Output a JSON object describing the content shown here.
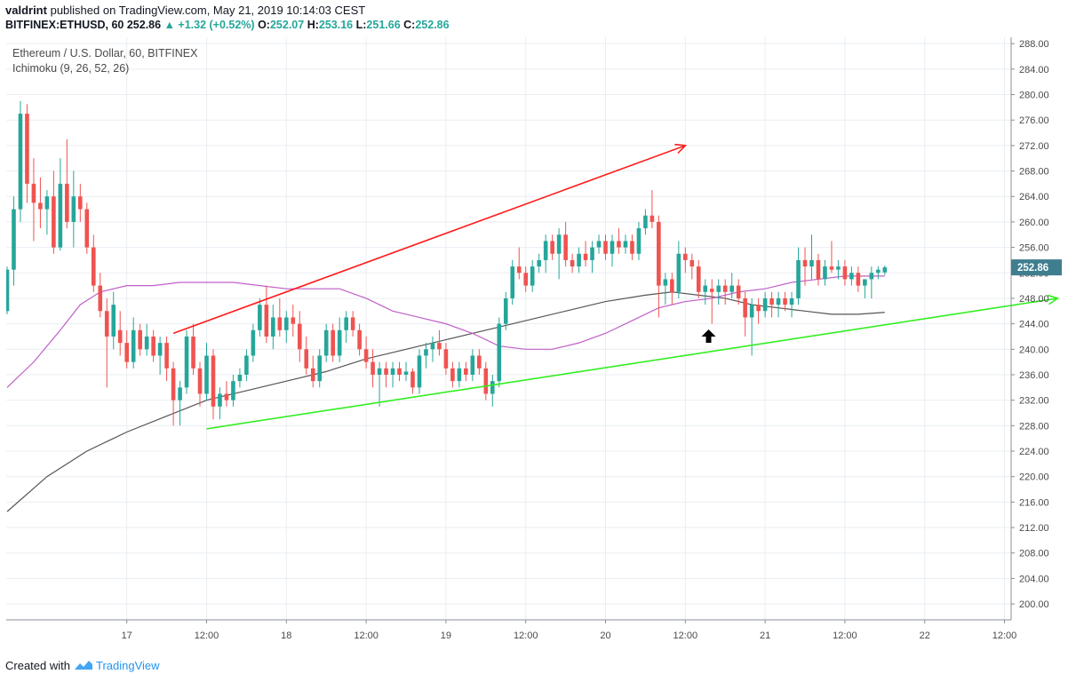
{
  "header": {
    "author": "valdrint",
    "published_text": "published on TradingView.com, May 21, 2019 10:14:03 CEST",
    "symbol_line": "BITFINEX:ETHUSD, 60",
    "last_price": "252.86",
    "change_arrow": "▲",
    "change": "+1.32 (+0.52%)",
    "o_label": "O:",
    "o_value": "252.07",
    "h_label": "H:",
    "h_value": "253.16",
    "l_label": "L:",
    "l_value": "251.66",
    "c_label": "C:",
    "c_value": "252.86"
  },
  "legend": {
    "title": "Ethereum / U.S. Dollar, 60, BITFINEX",
    "indicator": "Ichimoku (9, 26, 52, 26)"
  },
  "footer": {
    "created_with": "Created with",
    "brand": "TradingView"
  },
  "colors": {
    "up": "#26a69a",
    "down": "#ef5350",
    "grid": "#e9eef2",
    "kijun": "#c05fc7",
    "ma": "#555555",
    "resistance": "#ff1a1a",
    "support": "#33ee22",
    "price_tag": "#3f7e8f"
  },
  "chart_data": {
    "type": "candlestick",
    "title": "Ethereum / U.S. Dollar, 60, BITFINEX",
    "ylim": [
      197.5,
      289
    ],
    "y_ticks": [
      288,
      284,
      280,
      276,
      272,
      268,
      264,
      260,
      256,
      252,
      248,
      244,
      240,
      236,
      232,
      228,
      224,
      220,
      216,
      212,
      208,
      204,
      200
    ],
    "y_tick_labels": [
      "288.00",
      "284.00",
      "280.00",
      "276.00",
      "272.00",
      "268.00",
      "264.00",
      "260.00",
      "256.00",
      "252.00",
      "248.00",
      "244.00",
      "240.00",
      "236.00",
      "232.00",
      "228.00",
      "224.00",
      "220.00",
      "216.00",
      "212.00",
      "208.00",
      "204.00",
      "200.00"
    ],
    "x_ticks": [
      {
        "t": 18,
        "label": "17"
      },
      {
        "t": 30,
        "label": "12:00"
      },
      {
        "t": 42,
        "label": "18"
      },
      {
        "t": 54,
        "label": "12:00"
      },
      {
        "t": 66,
        "label": "19"
      },
      {
        "t": 78,
        "label": "12:00"
      },
      {
        "t": 90,
        "label": "20"
      },
      {
        "t": 102,
        "label": "12:00"
      },
      {
        "t": 114,
        "label": "21"
      },
      {
        "t": 126,
        "label": "12:00"
      },
      {
        "t": 138,
        "label": "22"
      },
      {
        "t": 150,
        "label": "12:00"
      }
    ],
    "t_range": [
      0,
      151
    ],
    "last_price_label": "252.86",
    "last_price_value": 252.86,
    "candles": [
      {
        "t": 0,
        "o": 246,
        "h": 253,
        "l": 245.5,
        "c": 252.5
      },
      {
        "t": 1,
        "o": 252.5,
        "h": 264,
        "l": 250,
        "c": 262
      },
      {
        "t": 2,
        "o": 262,
        "h": 279,
        "l": 260,
        "c": 277
      },
      {
        "t": 3,
        "o": 277,
        "h": 278.5,
        "l": 263,
        "c": 266
      },
      {
        "t": 4,
        "o": 266,
        "h": 270,
        "l": 257,
        "c": 263
      },
      {
        "t": 5,
        "o": 263,
        "h": 267,
        "l": 259,
        "c": 262
      },
      {
        "t": 6,
        "o": 262,
        "h": 265,
        "l": 258,
        "c": 264
      },
      {
        "t": 7,
        "o": 264,
        "h": 268,
        "l": 255,
        "c": 256
      },
      {
        "t": 8,
        "o": 256,
        "h": 270,
        "l": 255.5,
        "c": 266
      },
      {
        "t": 9,
        "o": 266,
        "h": 273,
        "l": 259,
        "c": 260
      },
      {
        "t": 10,
        "o": 260,
        "h": 268,
        "l": 256,
        "c": 264
      },
      {
        "t": 11,
        "o": 264,
        "h": 266,
        "l": 260,
        "c": 262
      },
      {
        "t": 12,
        "o": 262,
        "h": 263,
        "l": 255,
        "c": 256
      },
      {
        "t": 13,
        "o": 256,
        "h": 258,
        "l": 249,
        "c": 250
      },
      {
        "t": 14,
        "o": 250,
        "h": 252,
        "l": 245,
        "c": 246
      },
      {
        "t": 15,
        "o": 246,
        "h": 248,
        "l": 234,
        "c": 242
      },
      {
        "t": 16,
        "o": 242,
        "h": 249,
        "l": 240,
        "c": 247
      },
      {
        "t": 17,
        "o": 243,
        "h": 246,
        "l": 239,
        "c": 241
      },
      {
        "t": 18,
        "o": 241,
        "h": 243,
        "l": 237,
        "c": 238
      },
      {
        "t": 19,
        "o": 238,
        "h": 245,
        "l": 237,
        "c": 243
      },
      {
        "t": 20,
        "o": 243,
        "h": 244,
        "l": 239,
        "c": 240
      },
      {
        "t": 21,
        "o": 240,
        "h": 244,
        "l": 239,
        "c": 242
      },
      {
        "t": 22,
        "o": 242,
        "h": 243,
        "l": 238,
        "c": 239
      },
      {
        "t": 23,
        "o": 239,
        "h": 242,
        "l": 236,
        "c": 241
      },
      {
        "t": 24,
        "o": 241,
        "h": 242,
        "l": 235,
        "c": 237
      },
      {
        "t": 25,
        "o": 237,
        "h": 238,
        "l": 228,
        "c": 232
      },
      {
        "t": 26,
        "o": 232,
        "h": 235,
        "l": 228,
        "c": 234
      },
      {
        "t": 27,
        "o": 234,
        "h": 243,
        "l": 233,
        "c": 242
      },
      {
        "t": 28,
        "o": 242,
        "h": 244,
        "l": 236,
        "c": 237
      },
      {
        "t": 29,
        "o": 237,
        "h": 238,
        "l": 231,
        "c": 233
      },
      {
        "t": 30,
        "o": 233,
        "h": 241,
        "l": 232,
        "c": 239
      },
      {
        "t": 31,
        "o": 239,
        "h": 240,
        "l": 229,
        "c": 231
      },
      {
        "t": 32,
        "o": 231,
        "h": 234,
        "l": 229,
        "c": 233
      },
      {
        "t": 33,
        "o": 233,
        "h": 235,
        "l": 231,
        "c": 232
      },
      {
        "t": 34,
        "o": 232,
        "h": 236,
        "l": 231,
        "c": 235
      },
      {
        "t": 35,
        "o": 235,
        "h": 237,
        "l": 234,
        "c": 236
      },
      {
        "t": 36,
        "o": 236,
        "h": 240,
        "l": 235,
        "c": 239
      },
      {
        "t": 37,
        "o": 239,
        "h": 244,
        "l": 238,
        "c": 243
      },
      {
        "t": 38,
        "o": 243,
        "h": 248,
        "l": 242,
        "c": 247
      },
      {
        "t": 39,
        "o": 247,
        "h": 250,
        "l": 241,
        "c": 242
      },
      {
        "t": 40,
        "o": 242,
        "h": 247,
        "l": 240,
        "c": 245
      },
      {
        "t": 41,
        "o": 245,
        "h": 248,
        "l": 242,
        "c": 243
      },
      {
        "t": 42,
        "o": 243,
        "h": 246,
        "l": 241,
        "c": 245
      },
      {
        "t": 43,
        "o": 245,
        "h": 247,
        "l": 242,
        "c": 244
      },
      {
        "t": 44,
        "o": 244,
        "h": 246,
        "l": 238,
        "c": 240
      },
      {
        "t": 45,
        "o": 240,
        "h": 242,
        "l": 236,
        "c": 237
      },
      {
        "t": 46,
        "o": 237,
        "h": 239,
        "l": 234,
        "c": 235
      },
      {
        "t": 47,
        "o": 235,
        "h": 240,
        "l": 234,
        "c": 239
      },
      {
        "t": 48,
        "o": 239,
        "h": 244,
        "l": 238,
        "c": 243
      },
      {
        "t": 49,
        "o": 243,
        "h": 244,
        "l": 238,
        "c": 239
      },
      {
        "t": 50,
        "o": 239,
        "h": 245,
        "l": 238,
        "c": 243
      },
      {
        "t": 51,
        "o": 243,
        "h": 246,
        "l": 241,
        "c": 245
      },
      {
        "t": 52,
        "o": 245,
        "h": 246,
        "l": 242,
        "c": 243
      },
      {
        "t": 53,
        "o": 243,
        "h": 244,
        "l": 239,
        "c": 240
      },
      {
        "t": 54,
        "o": 240,
        "h": 242,
        "l": 237,
        "c": 238
      },
      {
        "t": 55,
        "o": 238,
        "h": 240,
        "l": 234,
        "c": 236
      },
      {
        "t": 56,
        "o": 236,
        "h": 238,
        "l": 231,
        "c": 237
      },
      {
        "t": 57,
        "o": 237,
        "h": 238,
        "l": 234,
        "c": 236
      },
      {
        "t": 58,
        "o": 236,
        "h": 238,
        "l": 234,
        "c": 237
      },
      {
        "t": 59,
        "o": 237,
        "h": 238,
        "l": 235,
        "c": 236
      },
      {
        "t": 60,
        "o": 236,
        "h": 238,
        "l": 235,
        "c": 236.5
      },
      {
        "t": 61,
        "o": 236.5,
        "h": 237,
        "l": 233,
        "c": 234
      },
      {
        "t": 62,
        "o": 234,
        "h": 240,
        "l": 233,
        "c": 239
      },
      {
        "t": 63,
        "o": 239,
        "h": 241,
        "l": 237,
        "c": 240
      },
      {
        "t": 64,
        "o": 240,
        "h": 242,
        "l": 238,
        "c": 241
      },
      {
        "t": 65,
        "o": 241,
        "h": 243,
        "l": 239,
        "c": 240
      },
      {
        "t": 66,
        "o": 240,
        "h": 241,
        "l": 236,
        "c": 237
      },
      {
        "t": 67,
        "o": 237,
        "h": 238,
        "l": 234,
        "c": 235
      },
      {
        "t": 68,
        "o": 235,
        "h": 238,
        "l": 234,
        "c": 237
      },
      {
        "t": 69,
        "o": 237,
        "h": 238,
        "l": 235,
        "c": 236
      },
      {
        "t": 70,
        "o": 236,
        "h": 240,
        "l": 235,
        "c": 239
      },
      {
        "t": 71,
        "o": 239,
        "h": 240,
        "l": 236,
        "c": 237
      },
      {
        "t": 72,
        "o": 237,
        "h": 238,
        "l": 232,
        "c": 233
      },
      {
        "t": 73,
        "o": 233,
        "h": 236,
        "l": 231,
        "c": 235
      },
      {
        "t": 74,
        "o": 235,
        "h": 245,
        "l": 234,
        "c": 244
      },
      {
        "t": 75,
        "o": 244,
        "h": 249,
        "l": 243,
        "c": 248
      },
      {
        "t": 76,
        "o": 248,
        "h": 254,
        "l": 247,
        "c": 253
      },
      {
        "t": 77,
        "o": 253,
        "h": 256,
        "l": 251,
        "c": 252
      },
      {
        "t": 78,
        "o": 252,
        "h": 253,
        "l": 249,
        "c": 250
      },
      {
        "t": 79,
        "o": 250,
        "h": 254,
        "l": 249,
        "c": 253
      },
      {
        "t": 80,
        "o": 253,
        "h": 255,
        "l": 252,
        "c": 254
      },
      {
        "t": 81,
        "o": 254,
        "h": 258,
        "l": 252,
        "c": 257
      },
      {
        "t": 82,
        "o": 257,
        "h": 258,
        "l": 254,
        "c": 255
      },
      {
        "t": 83,
        "o": 255,
        "h": 259,
        "l": 251,
        "c": 258
      },
      {
        "t": 84,
        "o": 258,
        "h": 260,
        "l": 253,
        "c": 254
      },
      {
        "t": 85,
        "o": 254,
        "h": 255,
        "l": 252,
        "c": 253
      },
      {
        "t": 86,
        "o": 253,
        "h": 256,
        "l": 252,
        "c": 255
      },
      {
        "t": 87,
        "o": 255,
        "h": 257,
        "l": 253,
        "c": 254
      },
      {
        "t": 88,
        "o": 254,
        "h": 257,
        "l": 252,
        "c": 256
      },
      {
        "t": 89,
        "o": 256,
        "h": 258,
        "l": 255,
        "c": 257
      },
      {
        "t": 90,
        "o": 257,
        "h": 258,
        "l": 254,
        "c": 255
      },
      {
        "t": 91,
        "o": 255,
        "h": 258,
        "l": 253,
        "c": 257
      },
      {
        "t": 92,
        "o": 257,
        "h": 259,
        "l": 255,
        "c": 256
      },
      {
        "t": 93,
        "o": 256,
        "h": 258,
        "l": 255,
        "c": 257
      },
      {
        "t": 94,
        "o": 257,
        "h": 258,
        "l": 254,
        "c": 255
      },
      {
        "t": 95,
        "o": 255,
        "h": 260,
        "l": 254,
        "c": 259
      },
      {
        "t": 96,
        "o": 259,
        "h": 262,
        "l": 258,
        "c": 261
      },
      {
        "t": 97,
        "o": 261,
        "h": 265,
        "l": 259,
        "c": 260
      },
      {
        "t": 98,
        "o": 260,
        "h": 261,
        "l": 245,
        "c": 250
      },
      {
        "t": 99,
        "o": 250,
        "h": 252,
        "l": 247,
        "c": 251
      },
      {
        "t": 100,
        "o": 251,
        "h": 252,
        "l": 247,
        "c": 249
      },
      {
        "t": 101,
        "o": 249,
        "h": 257,
        "l": 248,
        "c": 255
      },
      {
        "t": 102,
        "o": 255,
        "h": 256,
        "l": 252,
        "c": 254
      },
      {
        "t": 103,
        "o": 254,
        "h": 255,
        "l": 251,
        "c": 253
      },
      {
        "t": 104,
        "o": 253,
        "h": 254,
        "l": 248,
        "c": 249
      },
      {
        "t": 105,
        "o": 249,
        "h": 251,
        "l": 247,
        "c": 250
      },
      {
        "t": 106,
        "o": 249.5,
        "h": 251,
        "l": 244,
        "c": 249
      },
      {
        "t": 107,
        "o": 249,
        "h": 251,
        "l": 247,
        "c": 250
      },
      {
        "t": 108,
        "o": 250,
        "h": 251,
        "l": 247,
        "c": 249
      },
      {
        "t": 109,
        "o": 249,
        "h": 252,
        "l": 248,
        "c": 250
      },
      {
        "t": 110,
        "o": 250,
        "h": 251,
        "l": 247,
        "c": 248
      },
      {
        "t": 111,
        "o": 248,
        "h": 249,
        "l": 242,
        "c": 245
      },
      {
        "t": 112,
        "o": 245,
        "h": 248,
        "l": 239,
        "c": 247
      },
      {
        "t": 113,
        "o": 247,
        "h": 248,
        "l": 244,
        "c": 246
      },
      {
        "t": 114,
        "o": 246,
        "h": 249,
        "l": 245,
        "c": 248
      },
      {
        "t": 115,
        "o": 248,
        "h": 249,
        "l": 245,
        "c": 247
      },
      {
        "t": 116,
        "o": 247,
        "h": 249,
        "l": 245,
        "c": 248
      },
      {
        "t": 117,
        "o": 248,
        "h": 249,
        "l": 246,
        "c": 247
      },
      {
        "t": 118,
        "o": 247,
        "h": 249,
        "l": 245,
        "c": 248
      },
      {
        "t": 119,
        "o": 248,
        "h": 256,
        "l": 247,
        "c": 254
      },
      {
        "t": 120,
        "o": 254,
        "h": 256,
        "l": 250,
        "c": 253
      },
      {
        "t": 121,
        "o": 253,
        "h": 258,
        "l": 251,
        "c": 254
      },
      {
        "t": 122,
        "o": 254,
        "h": 255,
        "l": 250,
        "c": 251
      },
      {
        "t": 123,
        "o": 251,
        "h": 254,
        "l": 250,
        "c": 253
      },
      {
        "t": 124,
        "o": 253,
        "h": 257,
        "l": 252,
        "c": 252.5
      },
      {
        "t": 125,
        "o": 252.5,
        "h": 254,
        "l": 251,
        "c": 253
      },
      {
        "t": 126,
        "o": 253,
        "h": 254,
        "l": 250,
        "c": 251
      },
      {
        "t": 127,
        "o": 251,
        "h": 253,
        "l": 250,
        "c": 252
      },
      {
        "t": 128,
        "o": 252,
        "h": 253,
        "l": 249,
        "c": 250
      },
      {
        "t": 129,
        "o": 250,
        "h": 251,
        "l": 248,
        "c": 251
      },
      {
        "t": 130,
        "o": 251,
        "h": 253,
        "l": 248,
        "c": 252
      },
      {
        "t": 131,
        "o": 252,
        "h": 253,
        "l": 251,
        "c": 252.5
      },
      {
        "t": 132,
        "o": 252.07,
        "h": 253.16,
        "l": 251.66,
        "c": 252.86
      }
    ],
    "kijun_line": [
      [
        0,
        234
      ],
      [
        4,
        238
      ],
      [
        8,
        243
      ],
      [
        11,
        247
      ],
      [
        14,
        249
      ],
      [
        18,
        250
      ],
      [
        22,
        250
      ],
      [
        26,
        250.5
      ],
      [
        30,
        250.5
      ],
      [
        34,
        250.5
      ],
      [
        38,
        250
      ],
      [
        42,
        249.5
      ],
      [
        46,
        249.5
      ],
      [
        50,
        249.5
      ],
      [
        54,
        248
      ],
      [
        58,
        246
      ],
      [
        62,
        245
      ],
      [
        66,
        244
      ],
      [
        70,
        242.5
      ],
      [
        74,
        240.5
      ],
      [
        78,
        240
      ],
      [
        82,
        240
      ],
      [
        86,
        241
      ],
      [
        90,
        242.5
      ],
      [
        94,
        244.5
      ],
      [
        98,
        246.5
      ],
      [
        102,
        247.5
      ],
      [
        106,
        248
      ],
      [
        110,
        249
      ],
      [
        114,
        249.5
      ],
      [
        118,
        250.5
      ],
      [
        122,
        251
      ],
      [
        126,
        251.5
      ],
      [
        132,
        251.5
      ]
    ],
    "ma_line": [
      [
        0,
        214.5
      ],
      [
        6,
        220
      ],
      [
        12,
        224
      ],
      [
        18,
        227
      ],
      [
        24,
        229.5
      ],
      [
        30,
        232
      ],
      [
        36,
        233.5
      ],
      [
        42,
        235
      ],
      [
        48,
        236.5
      ],
      [
        54,
        238.5
      ],
      [
        60,
        240
      ],
      [
        66,
        241.5
      ],
      [
        72,
        243
      ],
      [
        78,
        244.5
      ],
      [
        84,
        246
      ],
      [
        90,
        247.5
      ],
      [
        96,
        248.5
      ],
      [
        100,
        249
      ],
      [
        104,
        248.5
      ],
      [
        108,
        248
      ],
      [
        112,
        247
      ],
      [
        116,
        246.5
      ],
      [
        120,
        246
      ],
      [
        124,
        245.5
      ],
      [
        128,
        245.5
      ],
      [
        132,
        245.8
      ]
    ],
    "annotations": [
      {
        "type": "arrow",
        "color": "resistance",
        "from": [
          25,
          242.5
        ],
        "to": [
          102,
          272
        ]
      },
      {
        "type": "arrow",
        "color": "support",
        "from": [
          30,
          227.5
        ],
        "to": [
          158,
          248
        ]
      },
      {
        "type": "up-arrow-marker",
        "at": [
          105.5,
          242
        ]
      }
    ]
  }
}
